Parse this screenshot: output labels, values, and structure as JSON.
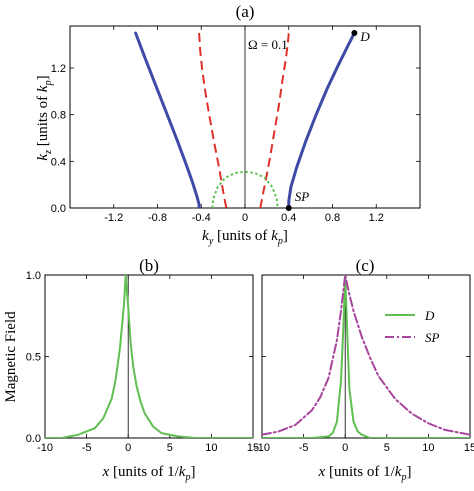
{
  "chart_data": [
    {
      "id": "a",
      "type": "line",
      "panel_label": "(a)",
      "xlabel_var": "k",
      "xlabel_sub": "y",
      "xlabel_rest": " [units of ",
      "xlabel_unit": "k",
      "xlabel_unit_sub": "p",
      "xlabel_close": "]",
      "ylabel_var": "k",
      "ylabel_sub": "z",
      "ylabel_rest": " [units of ",
      "ylabel_unit": "k",
      "ylabel_unit_sub": "p",
      "ylabel_close": "]",
      "annotation": "Ω = 0.1",
      "xlim": [
        -1.6,
        1.6
      ],
      "ylim": [
        0,
        1.56
      ],
      "xticks": [
        -1.2,
        -0.8,
        -0.4,
        0,
        0.4,
        0.8,
        1.2
      ],
      "xtick_labels": [
        "-1.2",
        "-0.8",
        "-0.4",
        "0",
        "0.4",
        "0.8",
        "1.2"
      ],
      "yticks": [
        0,
        0.4,
        0.8,
        1.2
      ],
      "ytick_labels": [
        "0.0",
        "0.4",
        "0.8",
        "1.2"
      ],
      "grid": false,
      "vline_x": 0,
      "colors": {
        "solid": "#3f4aa6",
        "dashed": "#e0302a",
        "dotted": "#5fbf50"
      },
      "series": [
        {
          "style": "solid",
          "x": [
            -1.0,
            -0.92,
            -0.82,
            -0.72,
            -0.62,
            -0.54,
            -0.48,
            -0.44,
            -0.42,
            -0.42
          ],
          "y": [
            1.5,
            1.3,
            1.06,
            0.82,
            0.58,
            0.38,
            0.22,
            0.1,
            0.03,
            0.0
          ]
        },
        {
          "style": "solid",
          "x": [
            0.4,
            0.4,
            0.42,
            0.47,
            0.55,
            0.65,
            0.75,
            0.85,
            0.93,
            1.0
          ],
          "y": [
            0.0,
            0.06,
            0.18,
            0.34,
            0.56,
            0.8,
            1.02,
            1.22,
            1.37,
            1.5
          ]
        },
        {
          "style": "dashed",
          "x": [
            -0.42,
            -0.41,
            -0.39,
            -0.36,
            -0.32,
            -0.28,
            -0.24,
            -0.21,
            -0.19,
            -0.17
          ],
          "y": [
            1.5,
            1.35,
            1.18,
            0.98,
            0.76,
            0.55,
            0.36,
            0.2,
            0.09,
            0.0
          ]
        },
        {
          "style": "dashed",
          "x": [
            0.14,
            0.16,
            0.19,
            0.23,
            0.27,
            0.31,
            0.34,
            0.37,
            0.39,
            0.4
          ],
          "y": [
            0.0,
            0.1,
            0.24,
            0.44,
            0.66,
            0.88,
            1.08,
            1.26,
            1.4,
            1.5
          ]
        },
        {
          "style": "dotted",
          "x": [
            -0.3,
            -0.29,
            -0.25,
            -0.18,
            -0.09,
            0.0,
            0.09,
            0.18,
            0.25,
            0.29,
            0.3
          ],
          "y": [
            0.0,
            0.08,
            0.18,
            0.26,
            0.3,
            0.31,
            0.3,
            0.26,
            0.18,
            0.08,
            0.0
          ]
        }
      ],
      "points": [
        {
          "label": "D",
          "x": 1.0,
          "y": 1.5
        },
        {
          "label": "SP",
          "x": 0.4,
          "y": 0.0
        }
      ]
    },
    {
      "id": "b",
      "type": "line",
      "panel_label": "(b)",
      "ylabel": "Magnetic Field",
      "xlabel_var": "x",
      "xlabel_rest": " [units of 1/",
      "xlabel_unit": "k",
      "xlabel_unit_sub": "p",
      "xlabel_close": "]",
      "xlim": [
        -10,
        15
      ],
      "ylim": [
        0,
        1
      ],
      "xticks": [
        -10,
        -5,
        0,
        5,
        10,
        15
      ],
      "xtick_labels": [
        "-10",
        "-5",
        "0",
        "5",
        "10",
        "15"
      ],
      "yticks": [
        0,
        0.5,
        1
      ],
      "ytick_labels": [
        "0.0",
        "0.5",
        "1.0"
      ],
      "vline_x": 0,
      "series": [
        {
          "style": "solid",
          "color": "#5fbf50",
          "x": [
            -10,
            -8,
            -6,
            -4,
            -3,
            -2,
            -1.5,
            -1,
            -0.5,
            -0.3,
            0,
            0.3,
            0.6,
            1,
            1.5,
            2,
            3,
            4,
            6,
            8,
            10,
            15
          ],
          "y": [
            0.0,
            0.0,
            0.02,
            0.06,
            0.12,
            0.24,
            0.36,
            0.55,
            0.82,
            1.0,
            0.8,
            0.58,
            0.44,
            0.32,
            0.22,
            0.15,
            0.07,
            0.03,
            0.01,
            0.0,
            0.0,
            0.0
          ]
        }
      ]
    },
    {
      "id": "c",
      "type": "line",
      "panel_label": "(c)",
      "xlabel_var": "x",
      "xlabel_rest": " [units of 1/",
      "xlabel_unit": "k",
      "xlabel_unit_sub": "p",
      "xlabel_close": "]",
      "xlim": [
        -10,
        15
      ],
      "ylim": [
        0,
        1
      ],
      "xticks": [
        -10,
        -5,
        0,
        5,
        10,
        15
      ],
      "xtick_labels": [
        "-10",
        "-5",
        "0",
        "5",
        "10",
        "15"
      ],
      "yticks": [
        0,
        0.5,
        1
      ],
      "vline_x": 0,
      "legend_position": "top-right",
      "series": [
        {
          "name": "D",
          "style": "solid",
          "color": "#5fbf50",
          "x": [
            -10,
            -6,
            -4,
            -2,
            -1.5,
            -1,
            -0.5,
            -0.2,
            0,
            0.2,
            0.5,
            1,
            1.5,
            2,
            3,
            4,
            6,
            10,
            15
          ],
          "y": [
            0.0,
            0.0,
            0.0,
            0.01,
            0.03,
            0.1,
            0.35,
            0.7,
            1.0,
            0.7,
            0.3,
            0.1,
            0.04,
            0.02,
            0.0,
            0.0,
            0.0,
            0.0,
            0.0
          ]
        },
        {
          "name": "SP",
          "style": "dashdot",
          "color": "#a8459c",
          "x": [
            -10,
            -8,
            -6,
            -4,
            -3,
            -2,
            -1,
            -0.5,
            0,
            0.5,
            1,
            2,
            3,
            4,
            6,
            8,
            10,
            12,
            15
          ],
          "y": [
            0.02,
            0.04,
            0.08,
            0.17,
            0.25,
            0.37,
            0.6,
            0.78,
            1.0,
            0.88,
            0.78,
            0.62,
            0.49,
            0.38,
            0.24,
            0.15,
            0.09,
            0.05,
            0.02
          ]
        }
      ]
    }
  ]
}
